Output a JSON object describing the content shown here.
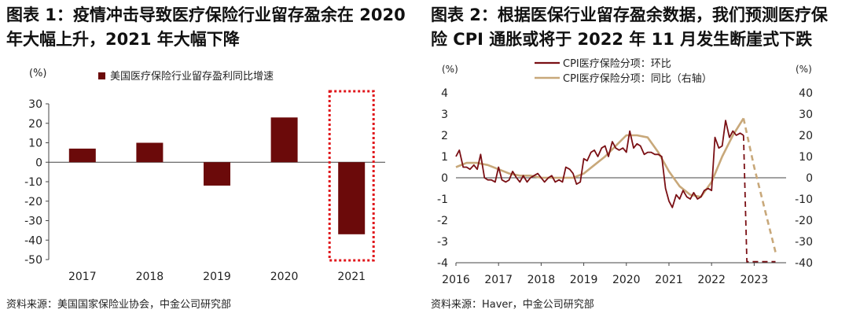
{
  "left_panel": {
    "title_line1": "图表 1：疫情冲击导致医疗保险行业留存盈余在 2020",
    "title_line2": "年大幅上升，2021 年大幅下降",
    "source": "资料来源：美国国家保险业协会，中金公司研究部"
  },
  "right_panel": {
    "title_line1": "图表 2：根据医保行业留存盈余数据，我们预测医疗保",
    "title_line2": "险 CPI 通胀或将于 2022 年 11 月发生断崖式下跌",
    "source": "资料来源：Haver，中金公司研究部"
  },
  "colors": {
    "bar": "#6b0a0a",
    "mom_line": "#7a0f14",
    "yoy_line": "#c8a87a",
    "highlight": "#e0161b"
  },
  "chart_data": [
    {
      "type": "bar",
      "ylabel": "(%)",
      "legend": "美国医疗保险行业留存盈利同比增速",
      "categories": [
        "2017",
        "2018",
        "2019",
        "2020",
        "2021"
      ],
      "values": [
        7,
        10,
        -12,
        23,
        -37
      ],
      "ylim": [
        -50,
        30
      ],
      "yticks": [
        30,
        20,
        10,
        0,
        -10,
        -20,
        -30,
        -40,
        -50
      ],
      "highlighted_category": "2021"
    },
    {
      "type": "line",
      "ylabel_left": "(%)",
      "ylabel_right": "(%)",
      "xlim": [
        2016,
        2023.75
      ],
      "xticks": [
        2016,
        2017,
        2018,
        2019,
        2020,
        2021,
        2022,
        2023
      ],
      "ylim_left": [
        -4,
        4
      ],
      "yticks_left": [
        4,
        3,
        2,
        1,
        0,
        -1,
        -2,
        -3,
        -4
      ],
      "ylim_right": [
        -40,
        40
      ],
      "yticks_right": [
        40,
        30,
        20,
        10,
        0,
        -10,
        -20,
        -30,
        -40
      ],
      "series": [
        {
          "name": "CPI医疗保险分项：环比",
          "axis": "left",
          "x": [
            2016.0,
            2016.08,
            2016.17,
            2016.25,
            2016.33,
            2016.42,
            2016.5,
            2016.58,
            2016.67,
            2016.75,
            2016.83,
            2016.92,
            2017.0,
            2017.08,
            2017.17,
            2017.25,
            2017.33,
            2017.42,
            2017.5,
            2017.58,
            2017.67,
            2017.75,
            2017.83,
            2017.92,
            2018.0,
            2018.08,
            2018.17,
            2018.25,
            2018.33,
            2018.42,
            2018.5,
            2018.58,
            2018.67,
            2018.75,
            2018.83,
            2018.92,
            2019.0,
            2019.08,
            2019.17,
            2019.25,
            2019.33,
            2019.42,
            2019.5,
            2019.58,
            2019.67,
            2019.75,
            2019.83,
            2019.92,
            2020.0,
            2020.08,
            2020.17,
            2020.25,
            2020.33,
            2020.42,
            2020.5,
            2020.58,
            2020.67,
            2020.75,
            2020.83,
            2020.92,
            2021.0,
            2021.08,
            2021.17,
            2021.25,
            2021.33,
            2021.42,
            2021.5,
            2021.58,
            2021.67,
            2021.75,
            2021.83,
            2021.92,
            2022.0,
            2022.08,
            2022.17,
            2022.25,
            2022.33,
            2022.42,
            2022.5,
            2022.58,
            2022.67,
            2022.75
          ],
          "y": [
            1.0,
            1.3,
            0.5,
            0.5,
            0.4,
            0.6,
            0.4,
            1.1,
            0.0,
            -0.1,
            -0.1,
            -0.2,
            0.5,
            -0.1,
            -0.2,
            -0.1,
            0.3,
            0.0,
            -0.2,
            0.1,
            -0.2,
            0.0,
            0.1,
            0.2,
            0.0,
            -0.2,
            0.0,
            0.1,
            -0.2,
            -0.1,
            -0.2,
            0.5,
            0.4,
            0.2,
            -0.3,
            -0.2,
            0.9,
            0.8,
            1.2,
            1.3,
            1.0,
            1.4,
            1.5,
            1.0,
            1.7,
            1.4,
            1.3,
            1.4,
            1.2,
            2.2,
            1.4,
            1.6,
            1.5,
            1.1,
            1.2,
            1.2,
            1.1,
            1.1,
            1.0,
            -0.5,
            -1.1,
            -1.4,
            -0.8,
            -1.0,
            -0.6,
            -0.9,
            -1.0,
            -0.7,
            -1.0,
            -0.9,
            -0.6,
            -0.5,
            -0.6,
            1.9,
            1.4,
            1.5,
            2.7,
            1.9,
            2.2,
            2.0,
            2.1,
            2.0
          ],
          "forecast": {
            "x": [
              2022.75,
              2022.83,
              2023.5
            ],
            "y": [
              2.0,
              -3.95,
              -3.95
            ]
          }
        },
        {
          "name": "CPI医疗保险分项：同比（右轴）",
          "axis": "right",
          "x": [
            2016.0,
            2016.25,
            2016.5,
            2016.75,
            2017.0,
            2017.25,
            2017.5,
            2017.75,
            2018.0,
            2018.25,
            2018.5,
            2018.75,
            2019.0,
            2019.25,
            2019.5,
            2019.75,
            2020.0,
            2020.25,
            2020.5,
            2020.75,
            2021.0,
            2021.25,
            2021.5,
            2021.75,
            2022.0,
            2022.25,
            2022.5,
            2022.75
          ],
          "y": [
            5,
            7,
            7,
            6,
            4,
            2,
            1,
            1,
            0,
            0,
            0,
            0,
            2,
            6,
            10,
            15,
            20,
            20,
            19,
            12,
            3,
            -4,
            -8,
            -9,
            -2,
            10,
            20,
            28
          ],
          "forecast": {
            "x": [
              2022.75,
              2023.0,
              2023.5
            ],
            "y": [
              28,
              5,
              -35
            ]
          }
        }
      ]
    }
  ]
}
